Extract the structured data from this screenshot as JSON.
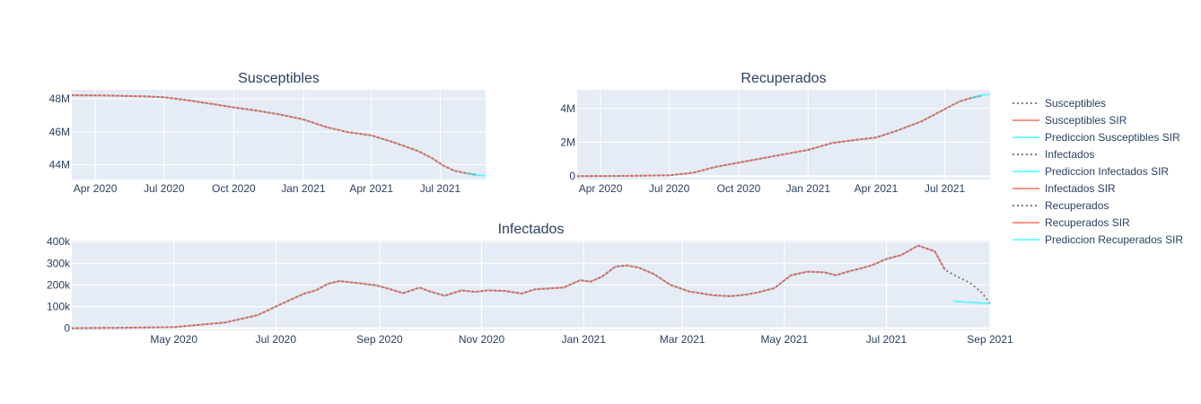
{
  "colors": {
    "plot_bg": "#e5ecf6",
    "grid": "#ffffff",
    "text": "#2a3f5f",
    "observed": "#808080",
    "sir": "#fa8072",
    "prediction": "#00ffff"
  },
  "legend": {
    "position": "right",
    "items": [
      {
        "label": "Susceptibles",
        "style": "dot",
        "color": "#808080"
      },
      {
        "label": "Susceptibles SIR",
        "style": "solid",
        "color": "#fa8072"
      },
      {
        "label": "Prediccion Susceptibles SIR",
        "style": "solid",
        "color": "#00ffff"
      },
      {
        "label": "Infectados",
        "style": "dot",
        "color": "#808080"
      },
      {
        "label": "Prediccion Infectados SIR",
        "style": "solid",
        "color": "#00ffff"
      },
      {
        "label": "Infectados SIR",
        "style": "solid",
        "color": "#fa8072"
      },
      {
        "label": "Recuperados",
        "style": "dot",
        "color": "#808080"
      },
      {
        "label": "Recuperados SIR",
        "style": "solid",
        "color": "#fa8072"
      },
      {
        "label": "Prediccion Recuperados SIR",
        "style": "solid",
        "color": "#00ffff"
      }
    ]
  },
  "chart_data": [
    {
      "id": "susceptibles",
      "type": "line",
      "title": "Susceptibles",
      "x_type": "date",
      "xlim": [
        "2020-03-01",
        "2021-08-30"
      ],
      "ylim": [
        43.1,
        48.55
      ],
      "y_unit": "M",
      "xticks": [
        {
          "date": "2020-04-01",
          "label": "Apr 2020"
        },
        {
          "date": "2020-07-01",
          "label": "Jul 2020"
        },
        {
          "date": "2020-10-01",
          "label": "Oct 2020"
        },
        {
          "date": "2021-01-01",
          "label": "Jan 2021"
        },
        {
          "date": "2021-04-01",
          "label": "Apr 2021"
        },
        {
          "date": "2021-07-01",
          "label": "Jul 2021"
        }
      ],
      "yticks": [
        {
          "value": 44,
          "label": "44M"
        },
        {
          "value": 46,
          "label": "46M"
        },
        {
          "value": 48,
          "label": "48M"
        }
      ],
      "series": [
        {
          "name": "Susceptibles",
          "style": "dot",
          "x": [
            "2020-03-01",
            "2020-04-15",
            "2020-06-01",
            "2020-07-01",
            "2020-08-01",
            "2020-09-01",
            "2020-10-01",
            "2020-11-01",
            "2020-12-01",
            "2021-01-01",
            "2021-02-01",
            "2021-03-01",
            "2021-04-01",
            "2021-05-01",
            "2021-06-01",
            "2021-06-20",
            "2021-07-05",
            "2021-07-20",
            "2021-08-05",
            "2021-08-18"
          ],
          "y": [
            48.22,
            48.2,
            48.16,
            48.1,
            47.92,
            47.7,
            47.48,
            47.28,
            47.05,
            46.75,
            46.28,
            45.98,
            45.78,
            45.35,
            44.85,
            44.4,
            43.95,
            43.63,
            43.48,
            43.38
          ]
        },
        {
          "name": "Susceptibles SIR",
          "style": "solid",
          "x": [
            "2020-03-01",
            "2020-04-15",
            "2020-06-01",
            "2020-07-01",
            "2020-08-01",
            "2020-09-01",
            "2020-10-01",
            "2020-11-01",
            "2020-12-01",
            "2021-01-01",
            "2021-02-01",
            "2021-03-01",
            "2021-04-01",
            "2021-05-01",
            "2021-06-01",
            "2021-06-20",
            "2021-07-05",
            "2021-07-20",
            "2021-08-05",
            "2021-08-18"
          ],
          "y": [
            48.22,
            48.2,
            48.16,
            48.1,
            47.92,
            47.7,
            47.48,
            47.28,
            47.05,
            46.75,
            46.28,
            45.98,
            45.78,
            45.35,
            44.85,
            44.4,
            43.95,
            43.63,
            43.48,
            43.38
          ]
        },
        {
          "name": "Prediccion Susceptibles SIR",
          "style": "solid",
          "x": [
            "2021-08-05",
            "2021-08-12",
            "2021-08-19",
            "2021-08-26",
            "2021-08-30"
          ],
          "y": [
            43.48,
            43.42,
            43.38,
            43.35,
            43.34
          ]
        }
      ]
    },
    {
      "id": "recuperados",
      "type": "line",
      "title": "Recuperados",
      "x_type": "date",
      "xlim": [
        "2020-03-01",
        "2021-08-30"
      ],
      "ylim": [
        -0.2,
        5.1
      ],
      "y_unit": "M",
      "xticks": [
        {
          "date": "2020-04-01",
          "label": "Apr 2020"
        },
        {
          "date": "2020-07-01",
          "label": "Jul 2020"
        },
        {
          "date": "2020-10-01",
          "label": "Oct 2020"
        },
        {
          "date": "2021-01-01",
          "label": "Jan 2021"
        },
        {
          "date": "2021-04-01",
          "label": "Apr 2021"
        },
        {
          "date": "2021-07-01",
          "label": "Jul 2021"
        }
      ],
      "yticks": [
        {
          "value": 0,
          "label": "0"
        },
        {
          "value": 2,
          "label": "2M"
        },
        {
          "value": 4,
          "label": "4M"
        }
      ],
      "series": [
        {
          "name": "Recuperados",
          "style": "dot",
          "x": [
            "2020-03-01",
            "2020-05-01",
            "2020-07-01",
            "2020-08-01",
            "2020-09-01",
            "2020-10-01",
            "2020-11-01",
            "2020-12-01",
            "2021-01-01",
            "2021-02-01",
            "2021-03-01",
            "2021-04-01",
            "2021-05-01",
            "2021-06-01",
            "2021-06-20",
            "2021-07-05",
            "2021-07-20",
            "2021-08-05",
            "2021-08-18"
          ],
          "y": [
            0,
            0.01,
            0.05,
            0.2,
            0.55,
            0.8,
            1.05,
            1.3,
            1.55,
            1.95,
            2.12,
            2.28,
            2.72,
            3.25,
            3.7,
            4.05,
            4.4,
            4.62,
            4.75
          ]
        },
        {
          "name": "Recuperados SIR",
          "style": "solid",
          "x": [
            "2020-03-01",
            "2020-05-01",
            "2020-07-01",
            "2020-08-01",
            "2020-09-01",
            "2020-10-01",
            "2020-11-01",
            "2020-12-01",
            "2021-01-01",
            "2021-02-01",
            "2021-03-01",
            "2021-04-01",
            "2021-05-01",
            "2021-06-01",
            "2021-06-20",
            "2021-07-05",
            "2021-07-20",
            "2021-08-05",
            "2021-08-18"
          ],
          "y": [
            0,
            0.01,
            0.05,
            0.2,
            0.55,
            0.8,
            1.05,
            1.3,
            1.55,
            1.95,
            2.12,
            2.28,
            2.72,
            3.25,
            3.7,
            4.05,
            4.4,
            4.62,
            4.75
          ]
        },
        {
          "name": "Prediccion Recuperados SIR",
          "style": "solid",
          "x": [
            "2021-08-05",
            "2021-08-12",
            "2021-08-19",
            "2021-08-26",
            "2021-08-30"
          ],
          "y": [
            4.62,
            4.7,
            4.77,
            4.82,
            4.85
          ]
        }
      ]
    },
    {
      "id": "infectados",
      "type": "line",
      "title": "Infectados",
      "x_type": "date",
      "xlim": [
        "2020-03-01",
        "2021-09-01"
      ],
      "ylim": [
        -10000,
        405000
      ],
      "y_unit": "",
      "xticks": [
        {
          "date": "2020-05-01",
          "label": "May 2020"
        },
        {
          "date": "2020-07-01",
          "label": "Jul 2020"
        },
        {
          "date": "2020-09-01",
          "label": "Sep 2020"
        },
        {
          "date": "2020-11-01",
          "label": "Nov 2020"
        },
        {
          "date": "2021-01-01",
          "label": "Jan 2021"
        },
        {
          "date": "2021-03-01",
          "label": "Mar 2021"
        },
        {
          "date": "2021-05-01",
          "label": "May 2021"
        },
        {
          "date": "2021-07-01",
          "label": "Jul 2021"
        },
        {
          "date": "2021-09-01",
          "label": "Sep 2021"
        }
      ],
      "yticks": [
        {
          "value": 0,
          "label": "0"
        },
        {
          "value": 100000,
          "label": "100k"
        },
        {
          "value": 200000,
          "label": "200k"
        },
        {
          "value": 300000,
          "label": "300k"
        },
        {
          "value": 400000,
          "label": "400k"
        }
      ],
      "series": [
        {
          "name": "Infectados",
          "style": "dot",
          "x": [
            "2020-03-01",
            "2020-04-01",
            "2020-05-01",
            "2020-06-01",
            "2020-06-20",
            "2020-07-05",
            "2020-07-18",
            "2020-07-25",
            "2020-08-01",
            "2020-08-08",
            "2020-08-20",
            "2020-08-30",
            "2020-09-05",
            "2020-09-15",
            "2020-09-25",
            "2020-10-01",
            "2020-10-10",
            "2020-10-20",
            "2020-10-28",
            "2020-11-05",
            "2020-11-15",
            "2020-11-25",
            "2020-12-03",
            "2020-12-10",
            "2020-12-20",
            "2020-12-30",
            "2021-01-05",
            "2021-01-12",
            "2021-01-20",
            "2021-01-27",
            "2021-02-03",
            "2021-02-12",
            "2021-02-22",
            "2021-03-05",
            "2021-03-20",
            "2021-03-30",
            "2021-04-08",
            "2021-04-15",
            "2021-04-25",
            "2021-05-05",
            "2021-05-15",
            "2021-05-25",
            "2021-06-01",
            "2021-06-08",
            "2021-06-15",
            "2021-06-22",
            "2021-07-01",
            "2021-07-10",
            "2021-07-20",
            "2021-07-30",
            "2021-08-05",
            "2021-08-12",
            "2021-08-20",
            "2021-08-27",
            "2021-09-01"
          ],
          "y": [
            0,
            2000,
            5000,
            27000,
            60000,
            115000,
            160000,
            175000,
            205000,
            218000,
            208000,
            198000,
            186000,
            162000,
            188000,
            170000,
            150000,
            175000,
            168000,
            175000,
            172000,
            160000,
            180000,
            183000,
            188000,
            222000,
            215000,
            238000,
            285000,
            290000,
            280000,
            250000,
            200000,
            170000,
            152000,
            148000,
            155000,
            165000,
            185000,
            245000,
            262000,
            258000,
            245000,
            262000,
            275000,
            290000,
            320000,
            338000,
            382000,
            355000,
            270000,
            240000,
            210000,
            165000,
            115000
          ]
        },
        {
          "name": "Infectados SIR",
          "style": "solid",
          "x": [
            "2020-03-01",
            "2020-04-01",
            "2020-05-01",
            "2020-06-01",
            "2020-06-20",
            "2020-07-05",
            "2020-07-18",
            "2020-07-25",
            "2020-08-01",
            "2020-08-08",
            "2020-08-20",
            "2020-08-30",
            "2020-09-05",
            "2020-09-15",
            "2020-09-25",
            "2020-10-01",
            "2020-10-10",
            "2020-10-20",
            "2020-10-28",
            "2020-11-05",
            "2020-11-15",
            "2020-11-25",
            "2020-12-03",
            "2020-12-10",
            "2020-12-20",
            "2020-12-30",
            "2021-01-05",
            "2021-01-12",
            "2021-01-20",
            "2021-01-27",
            "2021-02-03",
            "2021-02-12",
            "2021-02-22",
            "2021-03-05",
            "2021-03-20",
            "2021-03-30",
            "2021-04-08",
            "2021-04-15",
            "2021-04-25",
            "2021-05-05",
            "2021-05-15",
            "2021-05-25",
            "2021-06-01",
            "2021-06-08",
            "2021-06-15",
            "2021-06-22",
            "2021-07-01",
            "2021-07-10",
            "2021-07-20",
            "2021-07-30",
            "2021-08-05"
          ],
          "y": [
            0,
            2000,
            5000,
            27000,
            60000,
            115000,
            160000,
            175000,
            205000,
            218000,
            208000,
            198000,
            186000,
            162000,
            188000,
            170000,
            150000,
            175000,
            168000,
            175000,
            172000,
            160000,
            180000,
            183000,
            188000,
            222000,
            215000,
            238000,
            285000,
            290000,
            280000,
            250000,
            200000,
            170000,
            152000,
            148000,
            155000,
            165000,
            185000,
            245000,
            262000,
            258000,
            245000,
            262000,
            275000,
            290000,
            320000,
            338000,
            382000,
            355000,
            270000
          ]
        },
        {
          "name": "Prediccion Infectados SIR",
          "style": "solid",
          "x": [
            "2021-08-10",
            "2021-08-17",
            "2021-08-24",
            "2021-09-01"
          ],
          "y": [
            125000,
            121000,
            118000,
            114000
          ]
        }
      ]
    }
  ]
}
